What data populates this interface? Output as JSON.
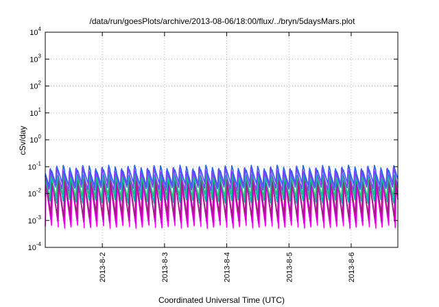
{
  "chart_data": {
    "type": "line",
    "title": "/data/run/goesPlots/archive/2013-08-06/18:00/flux/../bryn/5daysMars.plot",
    "xlabel": "Coordinated Universal Time (UTC)",
    "ylabel": "cSv/day",
    "y_scale": "log",
    "ylim": [
      0.0001,
      10000
    ],
    "y_ticks": [
      {
        "base": "10",
        "exp": "-4",
        "value": 0.0001
      },
      {
        "base": "10",
        "exp": "-3",
        "value": 0.001
      },
      {
        "base": "10",
        "exp": "-2",
        "value": 0.01
      },
      {
        "base": "10",
        "exp": "-1",
        "value": 0.1
      },
      {
        "base": "10",
        "exp": "0",
        "value": 1
      },
      {
        "base": "10",
        "exp": "1",
        "value": 10
      },
      {
        "base": "10",
        "exp": "2",
        "value": 100
      },
      {
        "base": "10",
        "exp": "3",
        "value": 1000
      },
      {
        "base": "10",
        "exp": "4",
        "value": 10000
      }
    ],
    "xlim": [
      "2013-08-01T02:00",
      "2013-08-06T18:00"
    ],
    "x_ticks": [
      "2013-8-2",
      "2013-8-3",
      "2013-8-4",
      "2013-8-5",
      "2013-8-6"
    ],
    "grid": true,
    "period_hours": 2.5,
    "series": [
      {
        "color": "#ff00ff",
        "peak": 0.02,
        "trough": 0.0006
      },
      {
        "color": "#cc00cc",
        "peak": 0.03,
        "trough": 0.0009
      },
      {
        "color": "#a0207a",
        "peak": 0.045,
        "trough": 0.0015
      },
      {
        "color": "#00b0b0",
        "peak": 0.06,
        "trough": 0.005
      },
      {
        "color": "#20c080",
        "peak": 0.05,
        "trough": 0.008
      },
      {
        "color": "#2060ff",
        "peak": 0.1,
        "trough": 0.02
      },
      {
        "color": "#8040ff",
        "peak": 0.08,
        "trough": 0.015
      }
    ]
  }
}
